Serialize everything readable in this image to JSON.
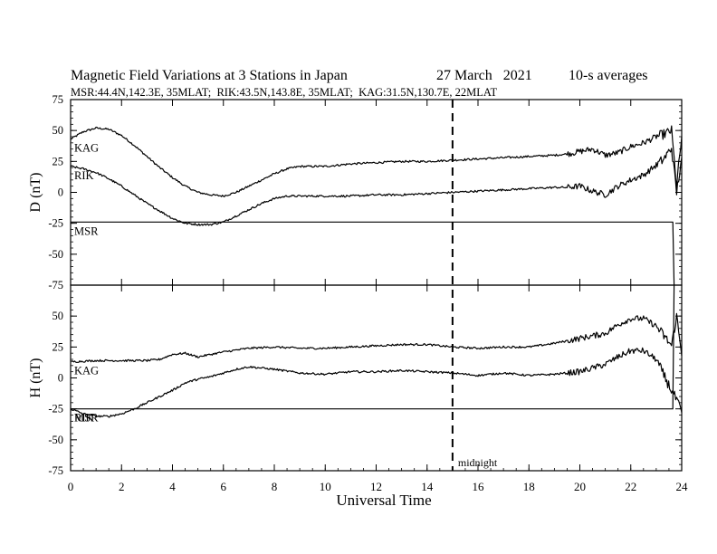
{
  "chart_data": {
    "type": "line",
    "title": "Magnetic Field Variations at 3 Stations in Japan",
    "date": "27 March   2021",
    "averaging": "10-s averages",
    "subtitle": "MSR:44.4N,142.3E, 35MLAT;  RIK:43.5N,143.8E, 35MLAT;  KAG:31.5N,130.7E, 22MLAT",
    "xlabel": "Universal Time",
    "xlim": [
      0,
      24
    ],
    "xticks": [
      "0",
      "2",
      "4",
      "6",
      "8",
      "10",
      "12",
      "14",
      "16",
      "18",
      "20",
      "22",
      "24"
    ],
    "marker": {
      "x": 15,
      "label": "midnight"
    },
    "panels": [
      {
        "ylabel": "D (nT)",
        "ylim": [
          -75,
          75
        ],
        "yticks": [
          "75",
          "50",
          "25",
          "0",
          "-25",
          "-50",
          "-75"
        ],
        "series": [
          {
            "name": "KAG",
            "x": [
              0,
              0.5,
              1,
              1.5,
              2,
              2.5,
              3,
              3.5,
              4,
              4.5,
              5,
              5.5,
              6,
              6.5,
              7,
              7.5,
              8,
              8.5,
              9,
              10,
              11,
              12,
              13,
              14,
              15,
              16,
              17,
              18,
              19,
              19.5,
              20,
              20.5,
              21,
              21.5,
              22,
              22.5,
              23,
              23.3,
              23.6,
              23.8,
              24
            ],
            "values": [
              43,
              49,
              52,
              51,
              46,
              38,
              29,
              20,
              12,
              5,
              0,
              -2,
              -3,
              0,
              5,
              10,
              15,
              19,
              21,
              21,
              23,
              24,
              25,
              25,
              26,
              27,
              28,
              29,
              30,
              31,
              33,
              35,
              30,
              32,
              37,
              40,
              45,
              47,
              50,
              5,
              45
            ]
          },
          {
            "name": "RIK",
            "x": [
              0,
              0.5,
              1,
              1.5,
              2,
              2.5,
              3,
              3.5,
              4,
              4.5,
              5,
              5.5,
              6,
              6.5,
              7,
              7.5,
              8,
              8.5,
              9,
              10,
              11,
              12,
              13,
              14,
              15,
              16,
              17,
              18,
              19,
              19.5,
              20,
              20.5,
              21,
              21.5,
              22,
              22.5,
              23,
              23.3,
              23.6,
              23.8,
              24
            ],
            "values": [
              21,
              19,
              16,
              11,
              5,
              -2,
              -9,
              -15,
              -21,
              -25,
              -26,
              -26,
              -24,
              -19,
              -14,
              -9,
              -5,
              -3,
              -3,
              -3,
              -3,
              -2,
              -2,
              -1,
              0,
              1,
              2,
              3,
              4,
              4,
              5,
              1,
              -2,
              5,
              10,
              14,
              22,
              27,
              36,
              0,
              28
            ]
          },
          {
            "name": "MSR",
            "x": [
              0,
              23.6,
              23.65,
              23.7
            ],
            "values": [
              -24,
              -24,
              -24,
              -75
            ]
          }
        ],
        "labels": [
          {
            "series": "KAG",
            "text": "KAG"
          },
          {
            "series": "RIK",
            "text": "RIK"
          },
          {
            "series": "MSR",
            "text": "MSR"
          }
        ]
      },
      {
        "ylabel": "H (nT)",
        "ylim": [
          -75,
          75
        ],
        "yticks": [
          "75",
          "50",
          "25",
          "0",
          "-25",
          "-50",
          "-75"
        ],
        "series": [
          {
            "name": "KAG",
            "x": [
              0,
              1,
              2,
              3,
              3.5,
              4,
              4.5,
              5,
              6,
              7,
              8,
              9,
              10,
              11,
              12,
              13,
              14,
              15,
              16,
              17,
              18,
              19,
              20,
              20.5,
              21,
              21.5,
              22,
              22.5,
              23,
              23.3,
              23.6,
              23.8,
              24
            ],
            "values": [
              13,
              14,
              14,
              14,
              15,
              19,
              20,
              17,
              21,
              24,
              25,
              24,
              24,
              25,
              26,
              27,
              27,
              25,
              24,
              25,
              25,
              28,
              32,
              34,
              36,
              43,
              48,
              48,
              42,
              34,
              26,
              50,
              18
            ]
          },
          {
            "name": "RIK",
            "x": [
              0,
              0.5,
              1,
              1.5,
              2,
              2.5,
              3,
              3.5,
              4,
              4.5,
              5,
              5.5,
              6,
              6.5,
              7,
              8,
              9,
              10,
              11,
              12,
              13,
              14,
              15,
              16,
              17,
              18,
              19,
              20,
              20.5,
              21,
              21.5,
              22,
              22.5,
              23,
              23.3,
              23.6,
              23.8,
              24
            ],
            "values": [
              -25,
              -29,
              -31,
              -31,
              -29,
              -25,
              -20,
              -15,
              -10,
              -4,
              -1,
              1,
              4,
              7,
              9,
              7,
              4,
              3,
              5,
              5,
              6,
              5,
              4,
              2,
              4,
              2,
              3,
              5,
              8,
              11,
              17,
              22,
              22,
              15,
              2,
              -10,
              -18,
              -28
            ]
          },
          {
            "name": "MSR",
            "x": [
              0,
              23.6,
              23.65,
              23.7
            ],
            "values": [
              -25,
              -25,
              -25,
              75
            ]
          }
        ],
        "labels": [
          {
            "series": "KAG",
            "text": "KAG"
          },
          {
            "series": "RIK",
            "text": "RIK"
          },
          {
            "series": "MSR",
            "text": "MSR"
          }
        ]
      }
    ],
    "grid": false,
    "legend": "inline labels at left"
  }
}
